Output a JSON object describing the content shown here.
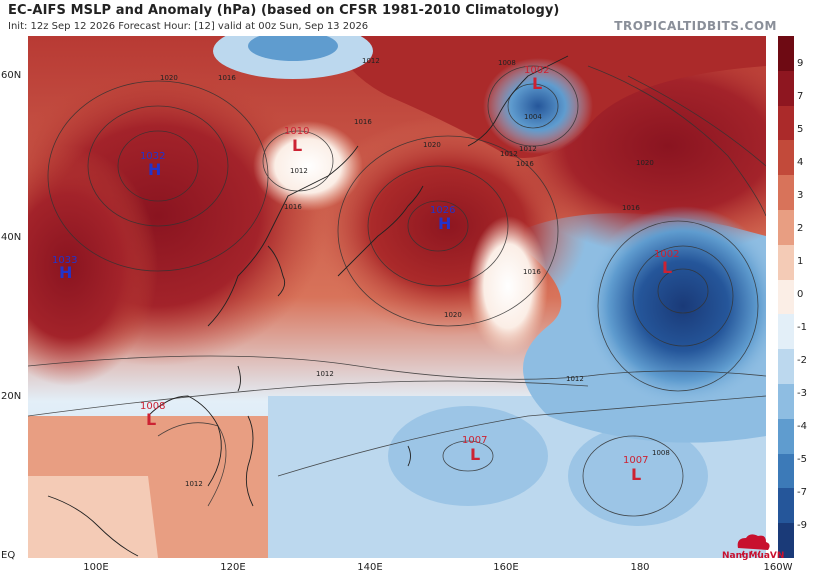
{
  "header": {
    "title": "EC-AIFS MSLP and Anomaly (hPa) (based on CFSR 1981-2010 Climatology)",
    "subtitle": "Init: 12z Sep 12 2026   Forecast Hour: [12]   valid at 00z Sun, Sep 13 2026",
    "brand": "TROPICALTIDBITS.COM"
  },
  "axes": {
    "lat_labels": [
      "60N",
      "40N",
      "20N",
      "EQ"
    ],
    "lon_labels": [
      "100E",
      "120E",
      "140E",
      "160E",
      "180",
      "160W"
    ]
  },
  "colorbar": {
    "labels": [
      "9",
      "7",
      "5",
      "4",
      "3",
      "2",
      "1",
      "0",
      "-1",
      "-2",
      "-3",
      "-4",
      "-5",
      "-7",
      "-9"
    ],
    "colors": [
      "#6e0a13",
      "#8e1620",
      "#ab2a2a",
      "#c24a3a",
      "#d8735a",
      "#e89e82",
      "#f4cbb6",
      "#fbeee6",
      "#e3eff8",
      "#bcd8ee",
      "#8ebde2",
      "#5f9ccf",
      "#3c7ab8",
      "#25569a",
      "#1a3a78"
    ]
  },
  "pressure_centers": [
    {
      "type": "H",
      "value": "1032"
    },
    {
      "type": "H",
      "value": "1033"
    },
    {
      "type": "L",
      "value": "1010"
    },
    {
      "type": "H",
      "value": "1026"
    },
    {
      "type": "L",
      "value": "1002"
    },
    {
      "type": "L",
      "value": "1002"
    },
    {
      "type": "L",
      "value": "1008"
    },
    {
      "type": "L",
      "value": "1007"
    },
    {
      "type": "L",
      "value": "1007"
    }
  ],
  "isobar_labels": [
    "1020",
    "1016",
    "1012",
    "1016",
    "1020",
    "1016",
    "1012",
    "1008",
    "1004",
    "1012",
    "1016",
    "1020",
    "1016",
    "1016",
    "1012",
    "1012",
    "1008",
    "1012",
    "1012",
    "1020"
  ],
  "logo": {
    "text": "NangMuaVN"
  }
}
